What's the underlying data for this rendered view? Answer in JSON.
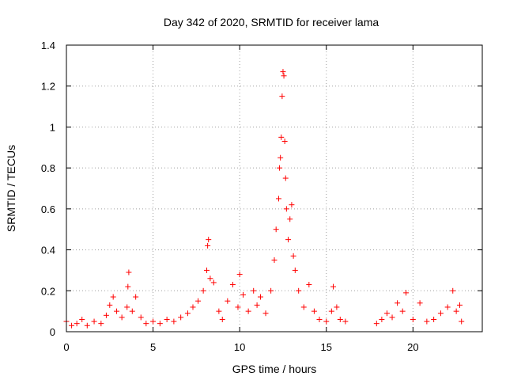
{
  "chart_data": {
    "type": "scatter",
    "title": "Day 342 of 2020, SRMTID for receiver lama",
    "xlabel": "GPS time / hours",
    "ylabel": "SRMTID / TECUs",
    "xlim": [
      0,
      24
    ],
    "ylim": [
      0,
      1.4
    ],
    "x_ticks": [
      0,
      5,
      10,
      15,
      20
    ],
    "x_tick_labels": [
      "0",
      "5",
      "10",
      "15",
      "20"
    ],
    "y_ticks": [
      0,
      0.2,
      0.4,
      0.6,
      0.8,
      1.0,
      1.2,
      1.4
    ],
    "y_tick_labels": [
      "0",
      "0.2",
      "0.4",
      "0.6",
      "0.8",
      "1",
      "1.2",
      "1.4"
    ],
    "grid": true,
    "marker": "+",
    "marker_color": "#ff0000",
    "coverage_gaps_hours": [
      [
        16.2,
        17.8
      ],
      [
        22.9,
        24
      ]
    ],
    "series": [
      {
        "name": "SRMTID",
        "points": [
          [
            0.0,
            0.05
          ],
          [
            0.3,
            0.03
          ],
          [
            0.6,
            0.04
          ],
          [
            0.9,
            0.06
          ],
          [
            1.2,
            0.03
          ],
          [
            1.6,
            0.05
          ],
          [
            2.0,
            0.04
          ],
          [
            2.3,
            0.08
          ],
          [
            2.5,
            0.13
          ],
          [
            2.7,
            0.17
          ],
          [
            2.9,
            0.1
          ],
          [
            3.2,
            0.07
          ],
          [
            3.5,
            0.12
          ],
          [
            3.55,
            0.22
          ],
          [
            3.6,
            0.29
          ],
          [
            3.8,
            0.1
          ],
          [
            4.0,
            0.17
          ],
          [
            4.3,
            0.07
          ],
          [
            4.6,
            0.04
          ],
          [
            5.0,
            0.05
          ],
          [
            5.4,
            0.04
          ],
          [
            5.8,
            0.06
          ],
          [
            6.2,
            0.05
          ],
          [
            6.6,
            0.07
          ],
          [
            7.0,
            0.09
          ],
          [
            7.3,
            0.12
          ],
          [
            7.6,
            0.15
          ],
          [
            7.9,
            0.2
          ],
          [
            8.1,
            0.3
          ],
          [
            8.15,
            0.42
          ],
          [
            8.2,
            0.45
          ],
          [
            8.3,
            0.26
          ],
          [
            8.5,
            0.24
          ],
          [
            8.8,
            0.1
          ],
          [
            9.0,
            0.06
          ],
          [
            9.3,
            0.15
          ],
          [
            9.6,
            0.23
          ],
          [
            9.9,
            0.12
          ],
          [
            10.0,
            0.28
          ],
          [
            10.2,
            0.18
          ],
          [
            10.5,
            0.1
          ],
          [
            10.8,
            0.2
          ],
          [
            11.0,
            0.13
          ],
          [
            11.2,
            0.17
          ],
          [
            11.5,
            0.09
          ],
          [
            11.8,
            0.2
          ],
          [
            12.0,
            0.35
          ],
          [
            12.1,
            0.5
          ],
          [
            12.25,
            0.65
          ],
          [
            12.3,
            0.8
          ],
          [
            12.35,
            0.85
          ],
          [
            12.4,
            0.95
          ],
          [
            12.45,
            1.15
          ],
          [
            12.5,
            1.27
          ],
          [
            12.55,
            1.25
          ],
          [
            12.6,
            0.93
          ],
          [
            12.65,
            0.75
          ],
          [
            12.7,
            0.6
          ],
          [
            12.8,
            0.45
          ],
          [
            12.9,
            0.55
          ],
          [
            13.0,
            0.62
          ],
          [
            13.1,
            0.37
          ],
          [
            13.2,
            0.3
          ],
          [
            13.4,
            0.2
          ],
          [
            13.7,
            0.12
          ],
          [
            14.0,
            0.23
          ],
          [
            14.3,
            0.1
          ],
          [
            14.6,
            0.06
          ],
          [
            15.0,
            0.05
          ],
          [
            15.3,
            0.1
          ],
          [
            15.4,
            0.22
          ],
          [
            15.6,
            0.12
          ],
          [
            15.8,
            0.06
          ],
          [
            16.1,
            0.05
          ],
          [
            17.9,
            0.04
          ],
          [
            18.2,
            0.06
          ],
          [
            18.5,
            0.09
          ],
          [
            18.8,
            0.07
          ],
          [
            19.1,
            0.14
          ],
          [
            19.4,
            0.1
          ],
          [
            19.6,
            0.19
          ],
          [
            20.0,
            0.06
          ],
          [
            20.4,
            0.14
          ],
          [
            20.8,
            0.05
          ],
          [
            21.2,
            0.06
          ],
          [
            21.6,
            0.09
          ],
          [
            22.0,
            0.12
          ],
          [
            22.3,
            0.2
          ],
          [
            22.5,
            0.1
          ],
          [
            22.7,
            0.13
          ],
          [
            22.8,
            0.05
          ]
        ]
      }
    ]
  }
}
